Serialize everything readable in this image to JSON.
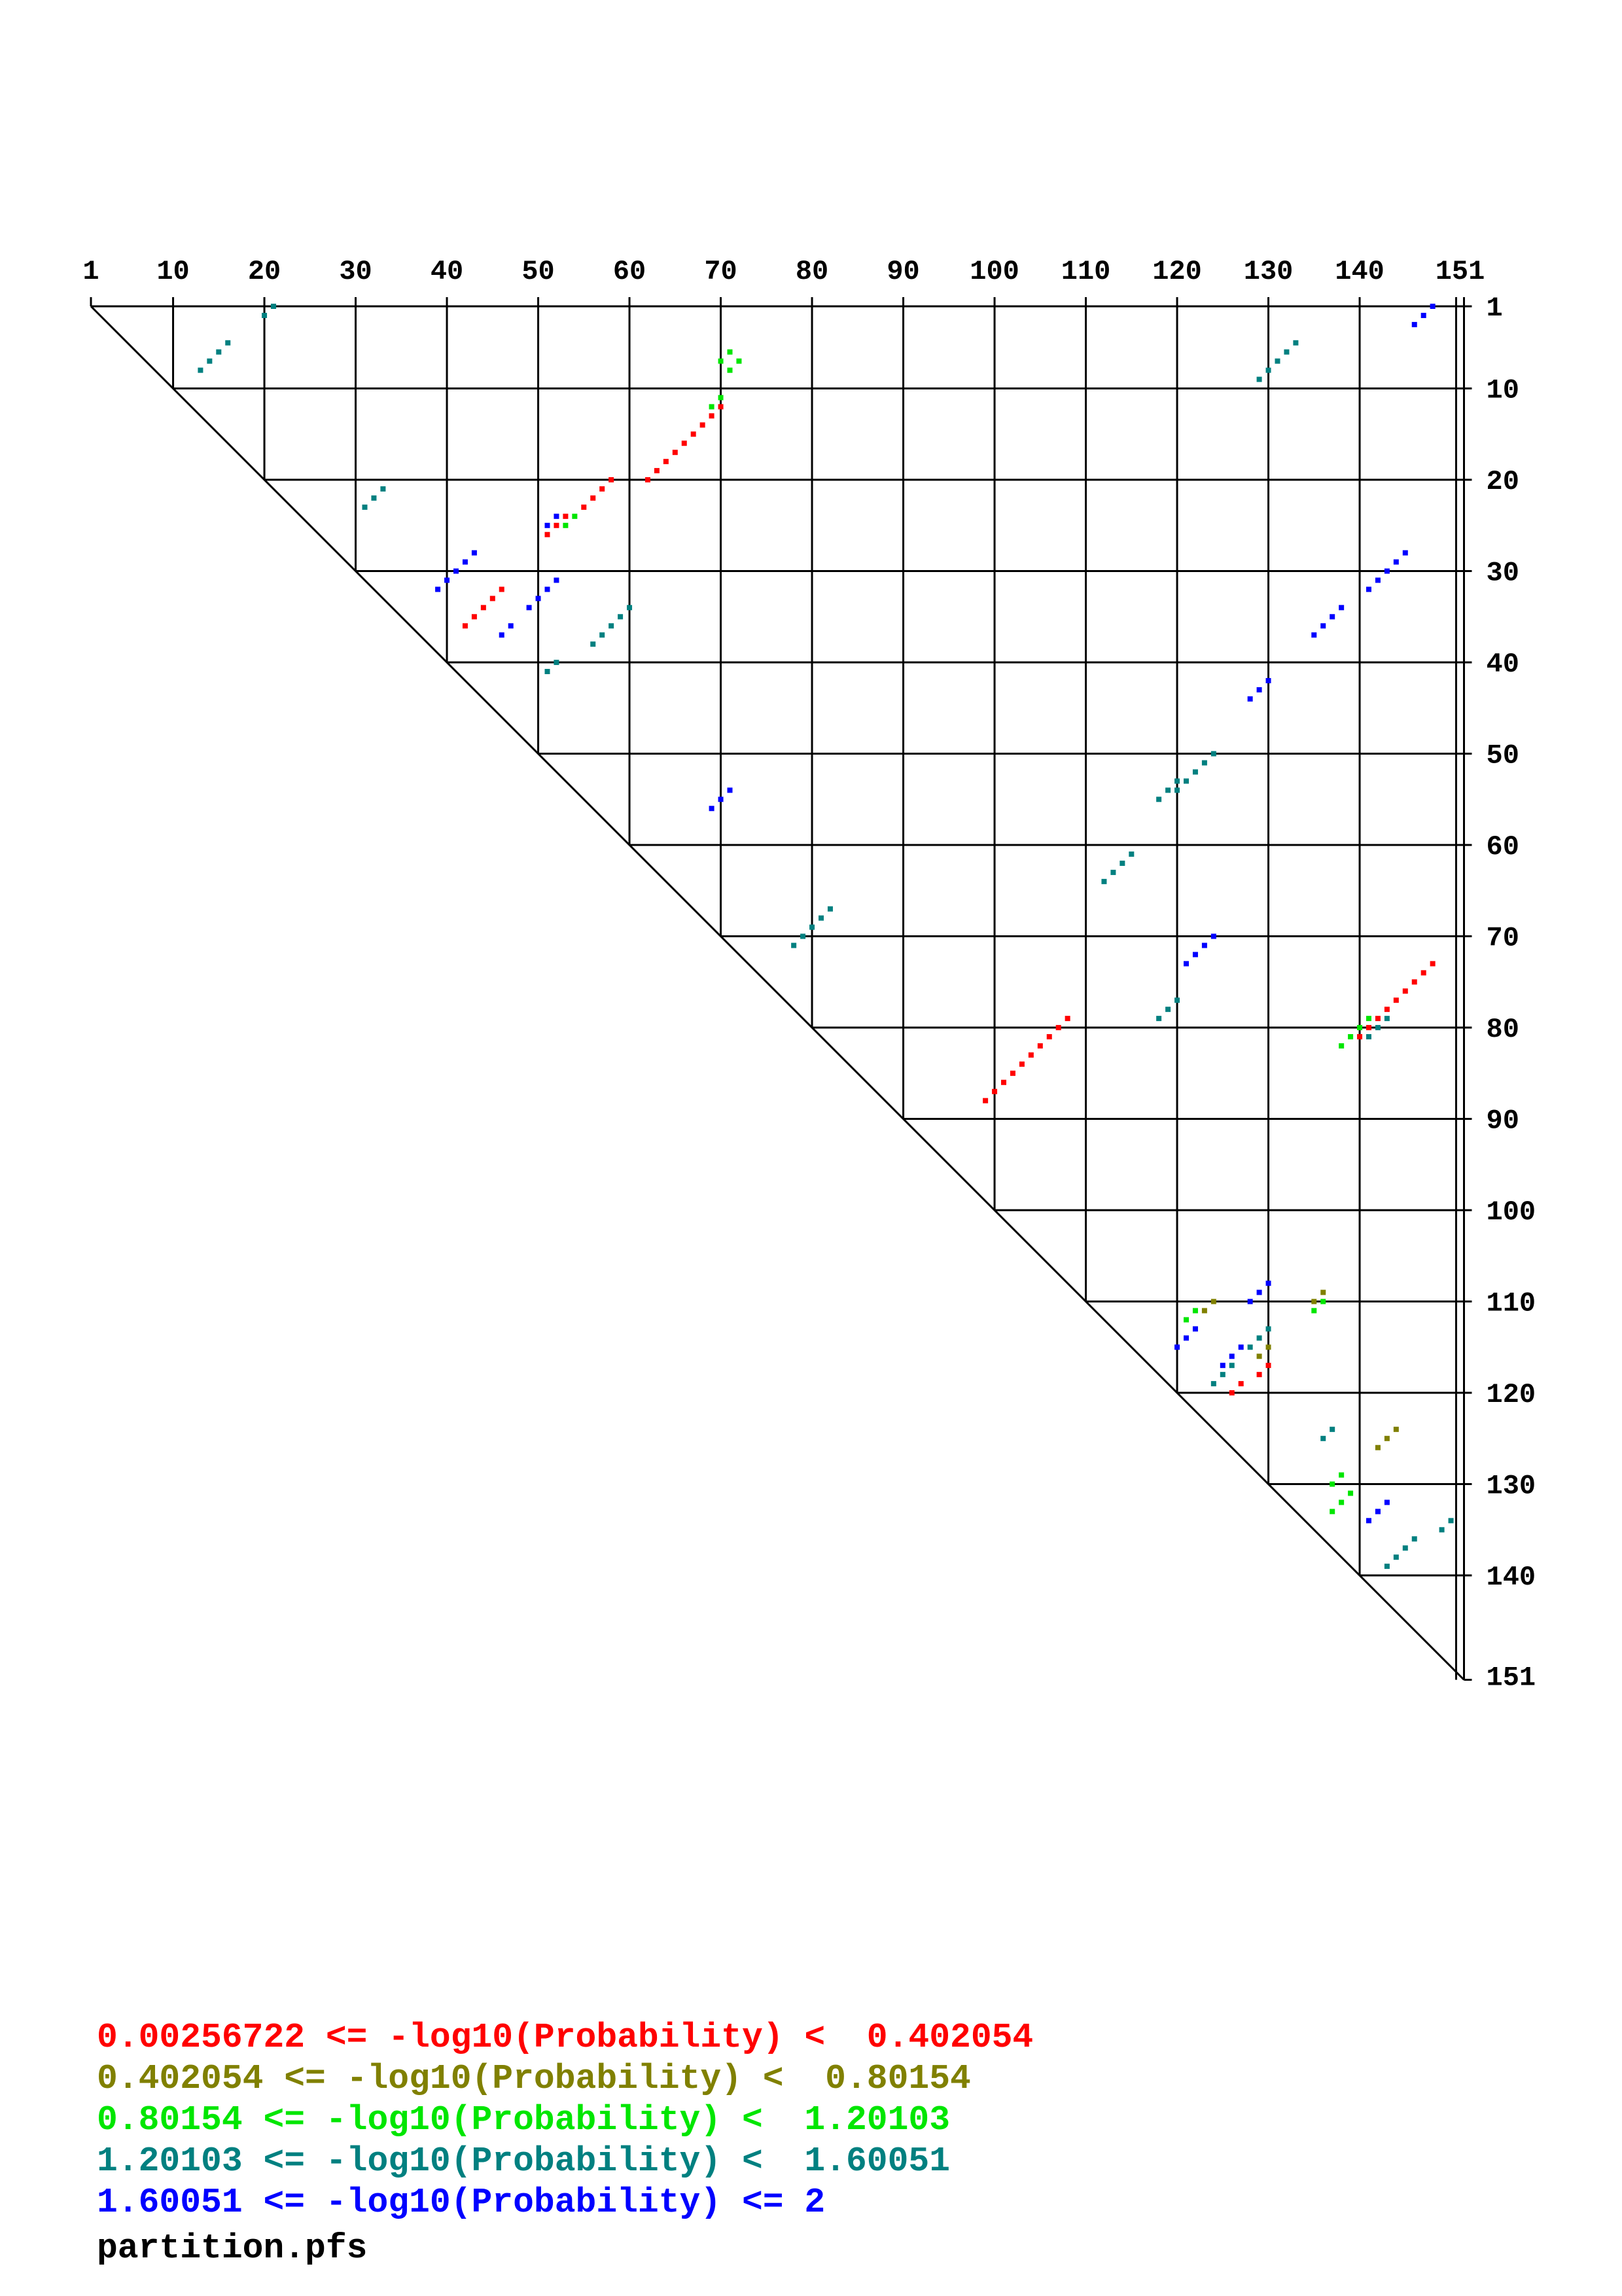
{
  "chart_data": {
    "type": "scatter",
    "description_kind": "base-pair probability dot plot (upper triangle)",
    "length": 151,
    "x_ticks": [
      1,
      10,
      20,
      30,
      40,
      50,
      60,
      70,
      80,
      90,
      100,
      110,
      120,
      130,
      140,
      151
    ],
    "y_ticks": [
      1,
      10,
      20,
      30,
      40,
      50,
      60,
      70,
      80,
      90,
      100,
      110,
      120,
      130,
      140,
      151
    ],
    "grid": true,
    "categories": [
      {
        "name": "red",
        "color": "#ff0000"
      },
      {
        "name": "olive",
        "color": "#808000"
      },
      {
        "name": "green",
        "color": "#00e600"
      },
      {
        "name": "teal",
        "color": "#008080"
      },
      {
        "name": "blue",
        "color": "#0000ff"
      }
    ],
    "helices": [
      {
        "cat": "teal",
        "i": 1,
        "j": 21,
        "n": 2
      },
      {
        "cat": "teal",
        "i": 5,
        "j": 16,
        "n": 4
      },
      {
        "cat": "blue",
        "i": 1,
        "j": 148,
        "n": 3
      },
      {
        "cat": "teal",
        "i": 5,
        "j": 133,
        "n": 5
      },
      {
        "cat": "green",
        "i": 6,
        "j": 71,
        "n": 2
      },
      {
        "cat": "green",
        "i": 7,
        "j": 72,
        "n": 2
      },
      {
        "cat": "red",
        "i": 12,
        "j": 70,
        "n": 9
      },
      {
        "cat": "green",
        "i": 11,
        "j": 70,
        "n": 2
      },
      {
        "cat": "red",
        "i": 20,
        "j": 58,
        "n": 4
      },
      {
        "cat": "teal",
        "i": 21,
        "j": 33,
        "n": 3
      },
      {
        "cat": "blue",
        "i": 24,
        "j": 52,
        "n": 2
      },
      {
        "cat": "red",
        "i": 24,
        "j": 53,
        "n": 3
      },
      {
        "cat": "green",
        "i": 24,
        "j": 54,
        "n": 2
      },
      {
        "cat": "blue",
        "i": 28,
        "j": 43,
        "n": 3
      },
      {
        "cat": "blue",
        "i": 31,
        "j": 40,
        "n": 2
      },
      {
        "cat": "blue",
        "i": 28,
        "j": 145,
        "n": 5
      },
      {
        "cat": "red",
        "i": 32,
        "j": 46,
        "n": 5
      },
      {
        "cat": "blue",
        "i": 31,
        "j": 52,
        "n": 4
      },
      {
        "cat": "blue",
        "i": 36,
        "j": 47,
        "n": 2
      },
      {
        "cat": "teal",
        "i": 34,
        "j": 60,
        "n": 5
      },
      {
        "cat": "blue",
        "i": 34,
        "j": 138,
        "n": 4
      },
      {
        "cat": "teal",
        "i": 40,
        "j": 52,
        "n": 2
      },
      {
        "cat": "blue",
        "i": 42,
        "j": 130,
        "n": 3
      },
      {
        "cat": "teal",
        "i": 50,
        "j": 124,
        "n": 5
      },
      {
        "cat": "teal",
        "i": 53,
        "j": 120,
        "n": 3
      },
      {
        "cat": "blue",
        "i": 54,
        "j": 71,
        "n": 3
      },
      {
        "cat": "teal",
        "i": 61,
        "j": 115,
        "n": 4
      },
      {
        "cat": "teal",
        "i": 67,
        "j": 82,
        "n": 5
      },
      {
        "cat": "blue",
        "i": 70,
        "j": 124,
        "n": 4
      },
      {
        "cat": "teal",
        "i": 77,
        "j": 120,
        "n": 3
      },
      {
        "cat": "red",
        "i": 73,
        "j": 148,
        "n": 9
      },
      {
        "cat": "green",
        "i": 79,
        "j": 141,
        "n": 4
      },
      {
        "cat": "teal",
        "i": 79,
        "j": 143,
        "n": 3
      },
      {
        "cat": "red",
        "i": 79,
        "j": 108,
        "n": 10
      },
      {
        "cat": "blue",
        "i": 108,
        "j": 130,
        "n": 3
      },
      {
        "cat": "olive",
        "i": 109,
        "j": 136,
        "n": 2
      },
      {
        "cat": "green",
        "i": 110,
        "j": 136,
        "n": 2
      },
      {
        "cat": "olive",
        "i": 110,
        "j": 124,
        "n": 2
      },
      {
        "cat": "green",
        "i": 111,
        "j": 122,
        "n": 2
      },
      {
        "cat": "blue",
        "i": 113,
        "j": 122,
        "n": 3
      },
      {
        "cat": "teal",
        "i": 113,
        "j": 130,
        "n": 3
      },
      {
        "cat": "olive",
        "i": 115,
        "j": 130,
        "n": 2
      },
      {
        "cat": "blue",
        "i": 115,
        "j": 127,
        "n": 3
      },
      {
        "cat": "teal",
        "i": 117,
        "j": 126,
        "n": 3
      },
      {
        "cat": "red",
        "i": 117,
        "j": 130,
        "n": 2
      },
      {
        "cat": "red",
        "i": 119,
        "j": 127,
        "n": 2
      },
      {
        "cat": "teal",
        "i": 124,
        "j": 137,
        "n": 2
      },
      {
        "cat": "olive",
        "i": 124,
        "j": 144,
        "n": 3
      },
      {
        "cat": "green",
        "i": 129,
        "j": 138,
        "n": 2
      },
      {
        "cat": "green",
        "i": 131,
        "j": 139,
        "n": 3
      },
      {
        "cat": "blue",
        "i": 132,
        "j": 143,
        "n": 2
      },
      {
        "cat": "blue",
        "i": 133,
        "j": 142,
        "n": 2
      },
      {
        "cat": "teal",
        "i": 134,
        "j": 150,
        "n": 2
      },
      {
        "cat": "teal",
        "i": 136,
        "j": 146,
        "n": 4
      }
    ]
  },
  "legend": [
    {
      "text": "0.00256722 <= -log10(Probability) <  0.402054",
      "color": "#ff0000"
    },
    {
      "text": "0.402054 <= -log10(Probability) <  0.80154",
      "color": "#808000"
    },
    {
      "text": "0.80154 <= -log10(Probability) <  1.20103",
      "color": "#00e600"
    },
    {
      "text": "1.20103 <= -log10(Probability) <  1.60051",
      "color": "#008080"
    },
    {
      "text": "1.60051 <= -log10(Probability) <= 2",
      "color": "#0000ff"
    }
  ],
  "footer": "partition.pfs"
}
